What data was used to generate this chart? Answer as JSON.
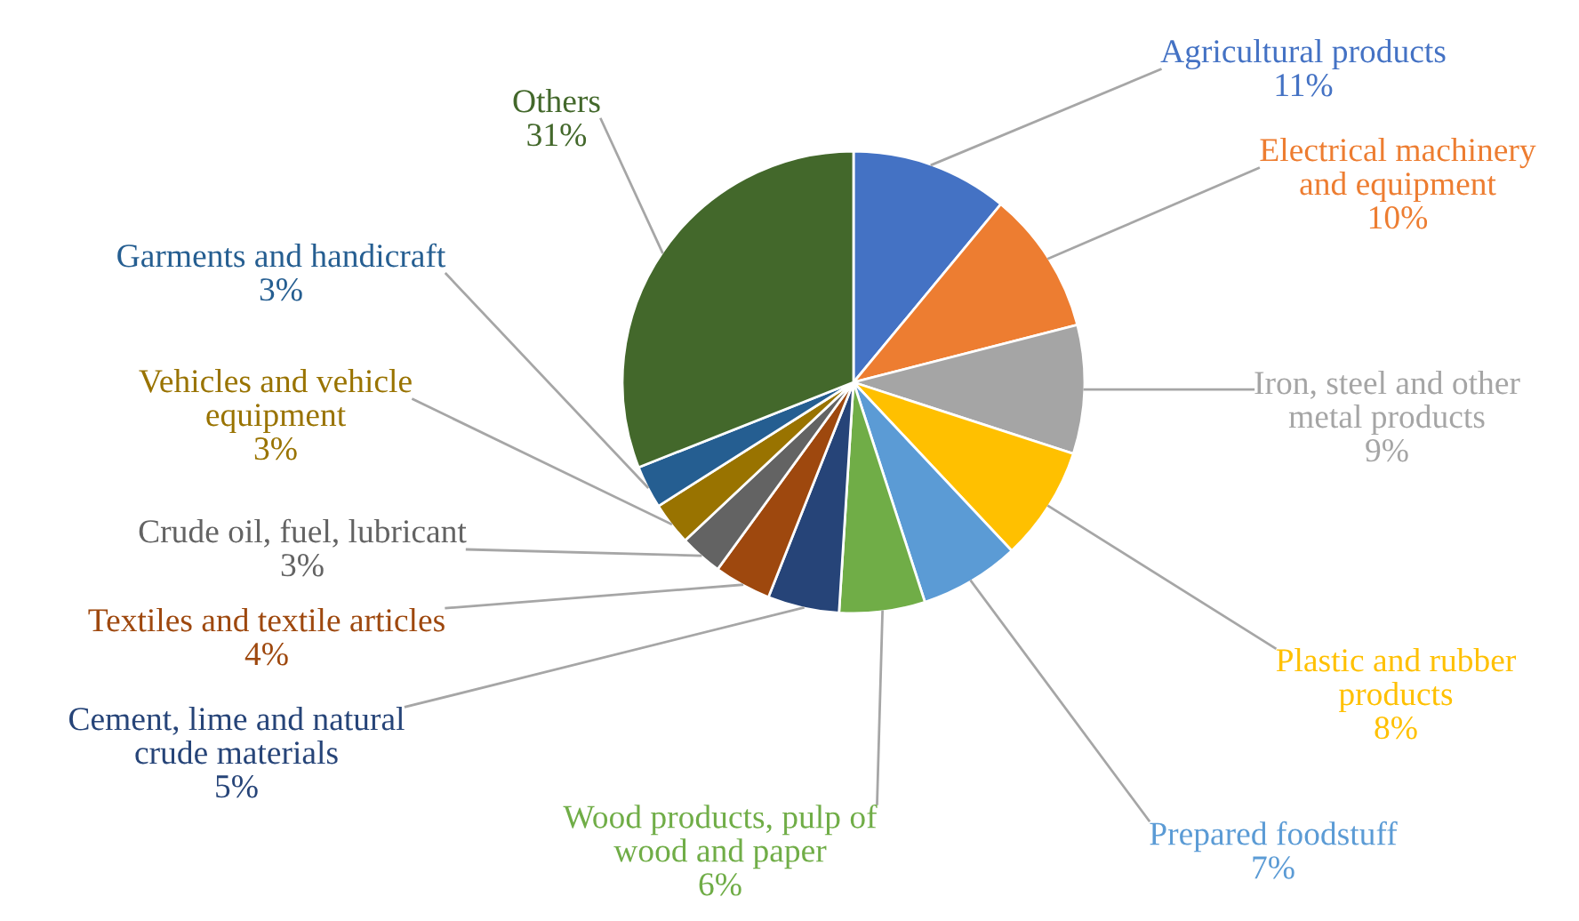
{
  "chart_data": {
    "type": "pie",
    "categories": [
      "Agricultural products",
      "Electrical machinery\nand equipment",
      "Iron, steel and other\nmetal products",
      "Plastic and rubber\nproducts",
      "Prepared foodstuff",
      "Wood products, pulp of\nwood and paper",
      "Cement, lime and natural\ncrude materials",
      "Textiles and textile articles",
      "Crude oil, fuel, lubricant",
      "Vehicles and vehicle\nequipment",
      "Garments and handicraft",
      "Others"
    ],
    "values": [
      11,
      10,
      9,
      8,
      7,
      6,
      5,
      4,
      3,
      3,
      3,
      31
    ],
    "colors": [
      "#4472c4",
      "#ed7d31",
      "#a5a5a5",
      "#ffc000",
      "#5b9bd5",
      "#70ad47",
      "#264478",
      "#9e480e",
      "#636363",
      "#997300",
      "#255e91",
      "#43682b"
    ],
    "value_labels": [
      "11%",
      "10%",
      "9%",
      "8%",
      "7%",
      "6%",
      "5%",
      "4%",
      "3%",
      "3%",
      "3%",
      "31%"
    ]
  }
}
